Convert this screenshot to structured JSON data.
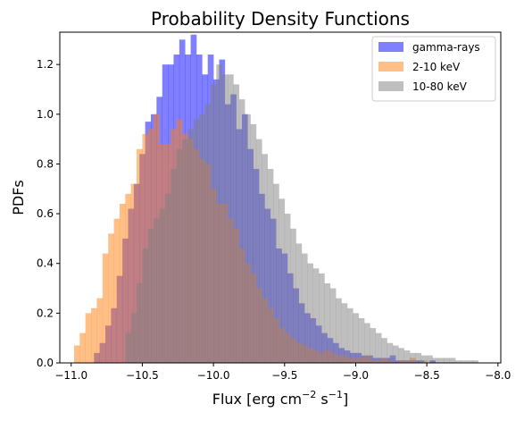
{
  "chart_data": {
    "type": "histogram",
    "title": "Probability Density Functions",
    "xlabel_parts": [
      "Flux [erg cm",
      "−2",
      " s",
      "−1",
      "]"
    ],
    "ylabel": "PDFs",
    "xlim": [
      -11.08,
      -7.98
    ],
    "ylim": [
      0,
      1.33
    ],
    "xticks": [
      -11.0,
      -10.5,
      -10.0,
      -9.5,
      -9.0,
      -8.5,
      -8.0
    ],
    "xtick_labels": [
      "−11.0",
      "−10.5",
      "−10.0",
      "−9.5",
      "−9.0",
      "−8.5",
      "−8.0"
    ],
    "yticks": [
      0,
      0.2,
      0.4,
      0.6,
      0.8,
      1.0,
      1.2
    ],
    "ytick_labels": [
      "0.0",
      "0.2",
      "0.4",
      "0.6",
      "0.8",
      "1.0",
      "1.2"
    ],
    "legend_position": "top-right",
    "series": [
      {
        "name": "gamma-rays",
        "color": "#0000ff",
        "alpha": 0.5,
        "x_start": -10.84,
        "bin_width": 0.04,
        "values": [
          0.04,
          0.08,
          0.15,
          0.22,
          0.35,
          0.5,
          0.62,
          0.72,
          0.84,
          0.97,
          1.0,
          1.07,
          1.2,
          1.2,
          1.24,
          1.3,
          1.24,
          1.32,
          1.24,
          1.16,
          1.24,
          1.14,
          1.22,
          1.04,
          1.08,
          0.94,
          1.0,
          0.86,
          0.78,
          0.68,
          0.62,
          0.58,
          0.46,
          0.44,
          0.36,
          0.3,
          0.24,
          0.2,
          0.18,
          0.15,
          0.12,
          0.1,
          0.08,
          0.06,
          0.05,
          0.04,
          0.04,
          0.03,
          0.03,
          0.02,
          0.02,
          0.02,
          0.03,
          0.01,
          0.01,
          0.01,
          0.01,
          0.01,
          0.0,
          0.01,
          0.0,
          0.0,
          0.0,
          0.0
        ]
      },
      {
        "name": "2-10 keV",
        "color": "#ff7f0e",
        "alpha": 0.5,
        "x_start": -10.98,
        "bin_width": 0.04,
        "values": [
          0.07,
          0.12,
          0.2,
          0.22,
          0.26,
          0.44,
          0.52,
          0.58,
          0.64,
          0.68,
          0.72,
          0.86,
          0.92,
          0.94,
          1.0,
          0.88,
          0.88,
          0.94,
          0.98,
          0.92,
          0.9,
          0.86,
          0.82,
          0.8,
          0.7,
          0.64,
          0.64,
          0.58,
          0.54,
          0.46,
          0.4,
          0.36,
          0.3,
          0.26,
          0.22,
          0.18,
          0.14,
          0.12,
          0.1,
          0.08,
          0.07,
          0.06,
          0.05,
          0.04,
          0.05,
          0.04,
          0.03,
          0.03,
          0.02,
          0.02,
          0.02,
          0.03,
          0.01,
          0.01,
          0.02,
          0.01,
          0.0,
          0.01,
          0.01,
          0.02,
          0.0,
          0.01,
          0.0,
          0.0,
          0.0,
          0.0
        ]
      },
      {
        "name": "10-80 keV",
        "color": "#808080",
        "alpha": 0.5,
        "x_start": -10.66,
        "bin_width": 0.04,
        "values": [
          0.0,
          0.12,
          0.2,
          0.32,
          0.46,
          0.54,
          0.58,
          0.62,
          0.68,
          0.78,
          0.86,
          0.9,
          0.94,
          0.98,
          1.0,
          1.04,
          1.12,
          1.2,
          1.16,
          1.16,
          1.12,
          1.06,
          1.0,
          0.96,
          0.9,
          0.84,
          0.78,
          0.72,
          0.66,
          0.6,
          0.54,
          0.48,
          0.44,
          0.4,
          0.38,
          0.36,
          0.32,
          0.3,
          0.26,
          0.24,
          0.22,
          0.2,
          0.18,
          0.16,
          0.14,
          0.12,
          0.1,
          0.08,
          0.07,
          0.06,
          0.05,
          0.04,
          0.04,
          0.03,
          0.03,
          0.02,
          0.02,
          0.02,
          0.02,
          0.01,
          0.01,
          0.01,
          0.01,
          0.0
        ]
      }
    ]
  }
}
